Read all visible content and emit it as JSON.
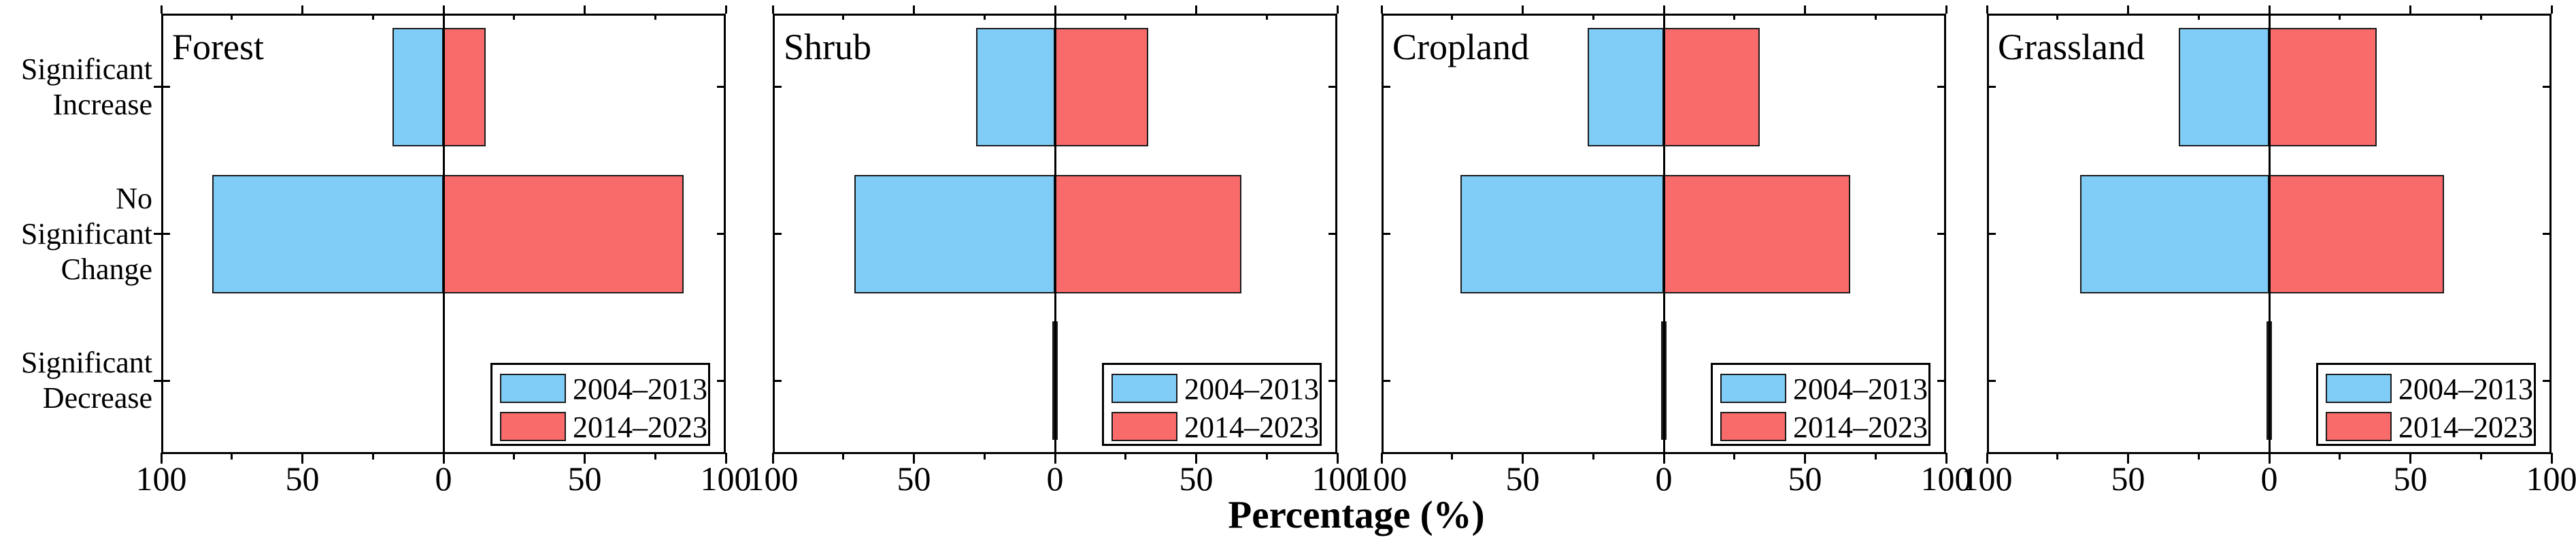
{
  "figure": {
    "xlabel": "Percentage (%)",
    "background": "#ffffff",
    "tick_labels": [
      "100",
      "50",
      "0",
      "50",
      "100"
    ],
    "categories": [
      {
        "label": "Significant Increase",
        "lines": [
          "Significant",
          "Increase"
        ]
      },
      {
        "label": "No Significant Change",
        "lines": [
          "No",
          "Significant",
          "Change"
        ]
      },
      {
        "label": "Significant Decrease",
        "lines": [
          "Significant",
          "Decrease"
        ]
      }
    ],
    "legend": {
      "entries": [
        {
          "label": "2004–2013",
          "color": "#7FCCF7"
        },
        {
          "label": "2014–2023",
          "color": "#F96B6B"
        }
      ]
    }
  },
  "colors": {
    "series_2004_2013": "#7FCCF7",
    "series_2014_2023": "#F96B6B",
    "bar_border": "#1a1a1a",
    "axis": "#000000"
  },
  "chart_data": [
    {
      "type": "bar",
      "orientation": "horizontal-diverging",
      "title": "Forest",
      "categories": [
        "Significant Increase",
        "No Significant Change",
        "Significant Decrease"
      ],
      "series": [
        {
          "name": "2004–2013",
          "side": "left",
          "color": "#7FCCF7",
          "values": [
            18,
            82,
            0
          ]
        },
        {
          "name": "2014–2023",
          "side": "right",
          "color": "#F96B6B",
          "values": [
            15,
            85,
            0
          ]
        }
      ],
      "xlabel": "Percentage (%)",
      "x_ticks": [
        100,
        50,
        0,
        50,
        100
      ],
      "x_minor_ticks": [
        75,
        25,
        25,
        75
      ],
      "xlim": [
        -100,
        100
      ],
      "grid": false,
      "legend_position": "bottom-right"
    },
    {
      "type": "bar",
      "orientation": "horizontal-diverging",
      "title": "Shrub",
      "categories": [
        "Significant Increase",
        "No Significant Change",
        "Significant Decrease"
      ],
      "series": [
        {
          "name": "2004–2013",
          "side": "left",
          "color": "#7FCCF7",
          "values": [
            28,
            71,
            1
          ]
        },
        {
          "name": "2014–2023",
          "side": "right",
          "color": "#F96B6B",
          "values": [
            33,
            66,
            1
          ]
        }
      ],
      "xlabel": "Percentage (%)",
      "x_ticks": [
        100,
        50,
        0,
        50,
        100
      ],
      "x_minor_ticks": [
        75,
        25,
        25,
        75
      ],
      "xlim": [
        -100,
        100
      ],
      "grid": false,
      "legend_position": "bottom-right"
    },
    {
      "type": "bar",
      "orientation": "horizontal-diverging",
      "title": "Cropland",
      "categories": [
        "Significant Increase",
        "No Significant Change",
        "Significant Decrease"
      ],
      "series": [
        {
          "name": "2004–2013",
          "side": "left",
          "color": "#7FCCF7",
          "values": [
            27,
            72,
            1
          ]
        },
        {
          "name": "2014–2023",
          "side": "right",
          "color": "#F96B6B",
          "values": [
            34,
            66,
            1
          ]
        }
      ],
      "xlabel": "Percentage (%)",
      "x_ticks": [
        100,
        50,
        0,
        50,
        100
      ],
      "x_minor_ticks": [
        75,
        25,
        25,
        75
      ],
      "xlim": [
        -100,
        100
      ],
      "grid": false,
      "legend_position": "bottom-right"
    },
    {
      "type": "bar",
      "orientation": "horizontal-diverging",
      "title": "Grassland",
      "categories": [
        "Significant Increase",
        "No Significant Change",
        "Significant Decrease"
      ],
      "series": [
        {
          "name": "2004–2013",
          "side": "left",
          "color": "#7FCCF7",
          "values": [
            32,
            67,
            1
          ]
        },
        {
          "name": "2014–2023",
          "side": "right",
          "color": "#F96B6B",
          "values": [
            38,
            62,
            1
          ]
        }
      ],
      "xlabel": "Percentage (%)",
      "x_ticks": [
        100,
        50,
        0,
        50,
        100
      ],
      "x_minor_ticks": [
        75,
        25,
        25,
        75
      ],
      "xlim": [
        -100,
        100
      ],
      "grid": false,
      "legend_position": "bottom-right"
    }
  ]
}
